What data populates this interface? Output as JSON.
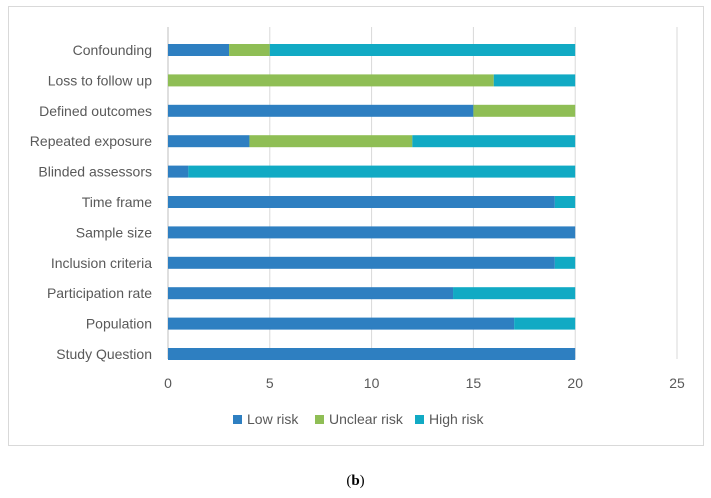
{
  "chart_data": {
    "type": "bar",
    "orientation": "horizontal",
    "stacked": true,
    "categories": [
      "Confounding",
      "Loss to follow up",
      "Defined outcomes",
      "Repeated exposure",
      "Blinded assessors",
      "Time frame",
      "Sample size",
      "Inclusion criteria",
      "Participation rate",
      "Population",
      "Study Question"
    ],
    "series": [
      {
        "name": "Low risk",
        "color": "#2e7fc1",
        "values": [
          3,
          0,
          15,
          4,
          1,
          19,
          20,
          19,
          14,
          17,
          20
        ]
      },
      {
        "name": "Unclear risk",
        "color": "#8fbe55",
        "values": [
          2,
          16,
          5,
          8,
          0,
          0,
          0,
          0,
          0,
          0,
          0
        ]
      },
      {
        "name": "High risk",
        "color": "#11aac4",
        "values": [
          15,
          4,
          0,
          8,
          19,
          1,
          0,
          1,
          6,
          3,
          0
        ]
      }
    ],
    "xlim": [
      0,
      25
    ],
    "xticks": [
      0,
      5,
      10,
      15,
      20,
      25
    ],
    "grid": "vertical",
    "legend": "bottom"
  },
  "caption": {
    "open": "(",
    "letter": "b",
    "close": ")"
  }
}
